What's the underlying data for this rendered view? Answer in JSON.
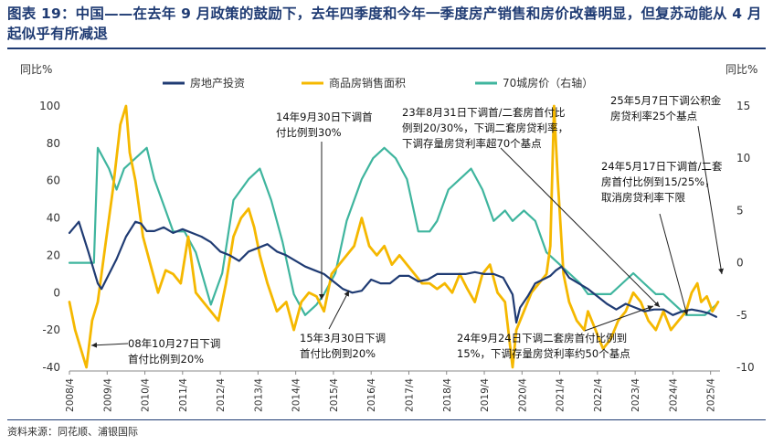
{
  "title": "图表 19：中国——在去年 9 月政策的鼓励下，去年四季度和今年一季度房产销售和房价改善明显，但复苏动能从 4 月起似乎有所减退",
  "source": "资料来源：同花顺、浦银国际",
  "chart_data": {
    "type": "line",
    "title": "图表 19：中国——在去年 9 月政策的鼓励下，去年四季度和今年一季度房产销售和房价改善明显，但复苏动能从 4 月起似乎有所减退",
    "ylabel_left": "同比%",
    "ylabel_right": "同比%",
    "ylim_left": [
      -40,
      100
    ],
    "ylim_right": [
      -10,
      15
    ],
    "yticks_left": [
      "100",
      "80",
      "60",
      "40",
      "20",
      "0",
      "-20",
      "-40"
    ],
    "yticks_right": [
      "15",
      "10",
      "5",
      "0",
      "-5",
      "-10"
    ],
    "xlim": [
      2008.25,
      2025.5
    ],
    "xticks": [
      "2008/4",
      "2009/4",
      "2010/4",
      "2011/4",
      "2012/4",
      "2013/4",
      "2014/4",
      "2015/4",
      "2016/4",
      "2017/4",
      "2018/4",
      "2019/4",
      "2020/4",
      "2021/4",
      "2022/4",
      "2023/4",
      "2024/4",
      "2025/4"
    ],
    "colors": {
      "investment": "#1f3b73",
      "sales": "#f5b800",
      "price": "#3fb59e"
    },
    "series": [
      {
        "name": "房地产投资",
        "axis": "left",
        "x": [
          2008.25,
          2008.5,
          2008.75,
          2009.0,
          2009.1,
          2009.25,
          2009.5,
          2009.75,
          2010.0,
          2010.15,
          2010.3,
          2010.5,
          2010.75,
          2011.0,
          2011.25,
          2011.5,
          2011.75,
          2012.0,
          2012.25,
          2012.5,
          2012.75,
          2013.0,
          2013.25,
          2013.5,
          2013.75,
          2014.0,
          2014.25,
          2014.5,
          2014.75,
          2015.0,
          2015.25,
          2015.5,
          2015.75,
          2016.0,
          2016.25,
          2016.5,
          2016.75,
          2017.0,
          2017.25,
          2017.5,
          2017.75,
          2018.0,
          2018.25,
          2018.5,
          2018.75,
          2019.0,
          2019.25,
          2019.5,
          2019.75,
          2020.0,
          2020.1,
          2020.2,
          2020.4,
          2020.6,
          2020.8,
          2021.0,
          2021.15,
          2021.3,
          2021.5,
          2021.75,
          2022.0,
          2022.25,
          2022.5,
          2022.75,
          2023.0,
          2023.25,
          2023.5,
          2023.75,
          2024.0,
          2024.25,
          2024.5,
          2024.75,
          2025.0,
          2025.2,
          2025.4
        ],
        "values": [
          32,
          38,
          22,
          5,
          2,
          8,
          18,
          30,
          38,
          37,
          33,
          33,
          35,
          32,
          34,
          32,
          30,
          27,
          22,
          20,
          17,
          22,
          24,
          26,
          22,
          20,
          17,
          14,
          12,
          10,
          6,
          2,
          0,
          1,
          7,
          5,
          5,
          9,
          9,
          6,
          7,
          10,
          10,
          10,
          10,
          11,
          10,
          10,
          8,
          -1,
          -16,
          -8,
          -2,
          5,
          7,
          9,
          12,
          14,
          8,
          5,
          2,
          -2,
          -6,
          -9,
          -6,
          -8,
          -10,
          -9,
          -9,
          -12,
          -10,
          -9,
          -10,
          -11,
          -13
        ]
      },
      {
        "name": "商品房销售面积",
        "axis": "left",
        "x": [
          2008.25,
          2008.4,
          2008.55,
          2008.7,
          2008.85,
          2009.0,
          2009.2,
          2009.4,
          2009.6,
          2009.75,
          2009.85,
          2010.0,
          2010.2,
          2010.4,
          2010.6,
          2010.8,
          2011.0,
          2011.2,
          2011.4,
          2011.6,
          2011.8,
          2012.0,
          2012.2,
          2012.4,
          2012.6,
          2012.8,
          2013.0,
          2013.15,
          2013.3,
          2013.5,
          2013.75,
          2014.0,
          2014.2,
          2014.4,
          2014.6,
          2014.8,
          2015.0,
          2015.2,
          2015.4,
          2015.6,
          2015.8,
          2016.0,
          2016.2,
          2016.4,
          2016.6,
          2016.8,
          2017.0,
          2017.2,
          2017.4,
          2017.6,
          2017.8,
          2018.0,
          2018.2,
          2018.4,
          2018.6,
          2018.8,
          2019.0,
          2019.2,
          2019.4,
          2019.6,
          2019.8,
          2020.0,
          2020.1,
          2020.3,
          2020.5,
          2020.7,
          2020.9,
          2021.0,
          2021.1,
          2021.2,
          2021.35,
          2021.5,
          2021.7,
          2021.9,
          2022.0,
          2022.2,
          2022.4,
          2022.6,
          2022.8,
          2023.0,
          2023.2,
          2023.4,
          2023.6,
          2023.8,
          2024.0,
          2024.2,
          2024.4,
          2024.6,
          2024.75,
          2024.9,
          2025.0,
          2025.15,
          2025.3,
          2025.45
        ],
        "values": [
          -5,
          -20,
          -30,
          -40,
          -15,
          -5,
          25,
          55,
          90,
          100,
          75,
          60,
          30,
          15,
          0,
          12,
          10,
          5,
          30,
          0,
          -5,
          -10,
          -15,
          5,
          30,
          40,
          45,
          35,
          20,
          5,
          -10,
          -5,
          -20,
          -5,
          0,
          -2,
          -10,
          10,
          15,
          20,
          25,
          40,
          25,
          20,
          25,
          15,
          20,
          15,
          10,
          5,
          5,
          2,
          5,
          0,
          10,
          2,
          -5,
          10,
          15,
          0,
          -5,
          -40,
          -20,
          -10,
          0,
          5,
          10,
          25,
          100,
          60,
          10,
          -5,
          -15,
          -20,
          -10,
          -20,
          -30,
          -25,
          -15,
          -10,
          0,
          -5,
          -15,
          -20,
          -10,
          -20,
          -15,
          -10,
          0,
          5,
          -5,
          -2,
          -10,
          -5
        ]
      },
      {
        "name": "70城房价（右轴）",
        "axis": "right",
        "x": [
          2008.25,
          2008.6,
          2008.9,
          2009.0,
          2009.3,
          2009.5,
          2009.7,
          2010.0,
          2010.3,
          2010.5,
          2010.8,
          2011.0,
          2011.3,
          2011.6,
          2012.0,
          2012.3,
          2012.6,
          2013.0,
          2013.3,
          2013.6,
          2013.9,
          2014.2,
          2014.5,
          2014.8,
          2015.0,
          2015.3,
          2015.6,
          2016.0,
          2016.3,
          2016.6,
          2016.9,
          2017.2,
          2017.5,
          2017.8,
          2018.0,
          2018.3,
          2018.6,
          2018.9,
          2019.2,
          2019.5,
          2019.8,
          2020.0,
          2020.3,
          2020.6,
          2020.9,
          2021.2,
          2021.5,
          2021.8,
          2022.0,
          2022.3,
          2022.6,
          2022.9,
          2023.2,
          2023.5,
          2023.8,
          2024.0,
          2024.3,
          2024.6,
          2024.9,
          2025.1,
          2025.4
        ],
        "values": [
          0,
          0,
          0,
          11,
          9,
          7,
          9,
          10,
          11,
          8,
          5,
          3,
          3,
          1,
          -4,
          -1,
          6,
          8,
          9,
          6,
          2,
          -3,
          -5,
          -4,
          -3,
          -1,
          4,
          8,
          10,
          11,
          10,
          8,
          3,
          3,
          4,
          7,
          8,
          9,
          7,
          4,
          5,
          4,
          5,
          4,
          1,
          0,
          -1,
          -2,
          -3,
          -3,
          -3,
          -2,
          -1,
          -2,
          -3,
          -3,
          -4,
          -5,
          -5,
          -5,
          -4
        ]
      }
    ],
    "legend": {
      "position": "top",
      "entries": [
        "房地产投资",
        "商品房销售面积",
        "70城房价（右轴）"
      ]
    },
    "annotations": [
      [
        "08年10月27日下调",
        "首付比例到20%"
      ],
      [
        "14年9月30日下调首",
        "付比例到30%"
      ],
      [
        "15年3月30日下调",
        "首付比例到20%"
      ],
      [
        "23年8月31日下调首/二套房首付比",
        "例到20/30%，下调二套房贷利率，",
        "下调存量房贷利率超70个基点"
      ],
      [
        "25年5月7日下调公积金",
        "房贷利率25个基点"
      ],
      [
        "24年5月17日下调首/二套",
        "房首付比例到15/25%，",
        "取消房贷利率下限"
      ],
      [
        "24年9月24日下调二套房首付比例到",
        "15%，下调存量房贷利率约50个基点"
      ]
    ]
  }
}
